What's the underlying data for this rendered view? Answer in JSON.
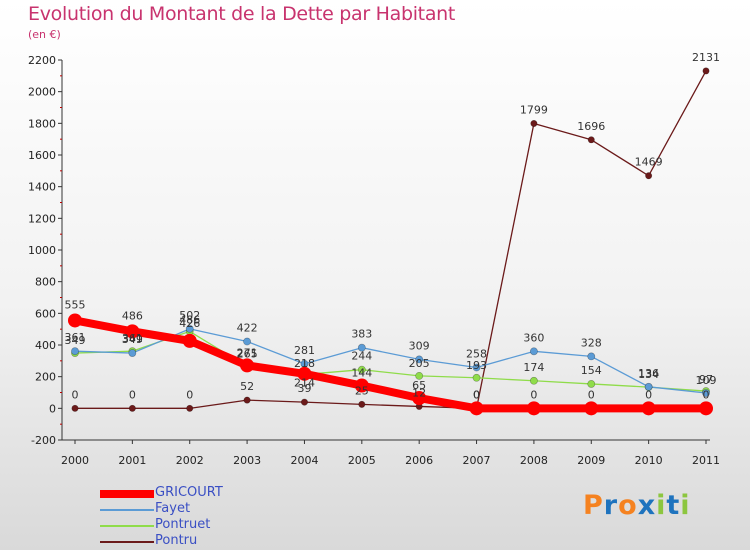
{
  "chart_data": {
    "type": "line",
    "title": "Evolution du Montant de la Dette par Habitant",
    "subtitle": "(en €)",
    "categories": [
      "2000",
      "2001",
      "2002",
      "2003",
      "2004",
      "2005",
      "2006",
      "2007",
      "2008",
      "2009",
      "2010",
      "2011"
    ],
    "ylim": [
      -200,
      2200
    ],
    "yticks": [
      "-200",
      "0",
      "200",
      "400",
      "600",
      "800",
      "1000",
      "1200",
      "1400",
      "1600",
      "1800",
      "2000",
      "2200"
    ],
    "grid": false,
    "legend_position": "bottom-left",
    "series": [
      {
        "name": "GRICOURT",
        "color": "#ff0000",
        "values": [
          555,
          486,
          426,
          271,
          218,
          144,
          65,
          0,
          0,
          0,
          0,
          0
        ],
        "labels": [
          "555",
          "486",
          "426",
          "271",
          "218",
          "144",
          "65",
          "0",
          "0",
          "0",
          "0",
          "0"
        ]
      },
      {
        "name": "Fayet",
        "color": "#5b9bd5",
        "values": [
          361,
          349,
          502,
          422,
          281,
          383,
          309,
          258,
          360,
          328,
          136,
          97
        ],
        "labels": [
          "361",
          "349",
          "502",
          "422",
          "281",
          "383",
          "309",
          "258",
          "360",
          "328",
          "136",
          "97"
        ]
      },
      {
        "name": "Pontruet",
        "color": "#8fdc4a",
        "values": [
          349,
          361,
          486,
          265,
          214,
          244,
          205,
          193,
          174,
          154,
          134,
          109
        ],
        "labels": [
          "349",
          "361",
          "486",
          "265",
          "214",
          "244",
          "205",
          "193",
          "174",
          "154",
          "134",
          "109"
        ]
      },
      {
        "name": "Pontru",
        "color": "#6b1a1a",
        "values": [
          0,
          0,
          0,
          52,
          39,
          25,
          12,
          0,
          1799,
          1696,
          1469,
          2131
        ],
        "labels": [
          "0",
          "0",
          "0",
          "52",
          "39",
          "25",
          "12",
          "0",
          "1799",
          "1696",
          "1469",
          "2131"
        ]
      }
    ]
  },
  "logo": {
    "letters": [
      "P",
      "r",
      "o",
      "x",
      "i",
      "t",
      "i"
    ],
    "colors": [
      "#f58220",
      "#1e73be",
      "#f58220",
      "#1e73be",
      "#8cc63f",
      "#1e73be",
      "#8cc63f"
    ]
  }
}
